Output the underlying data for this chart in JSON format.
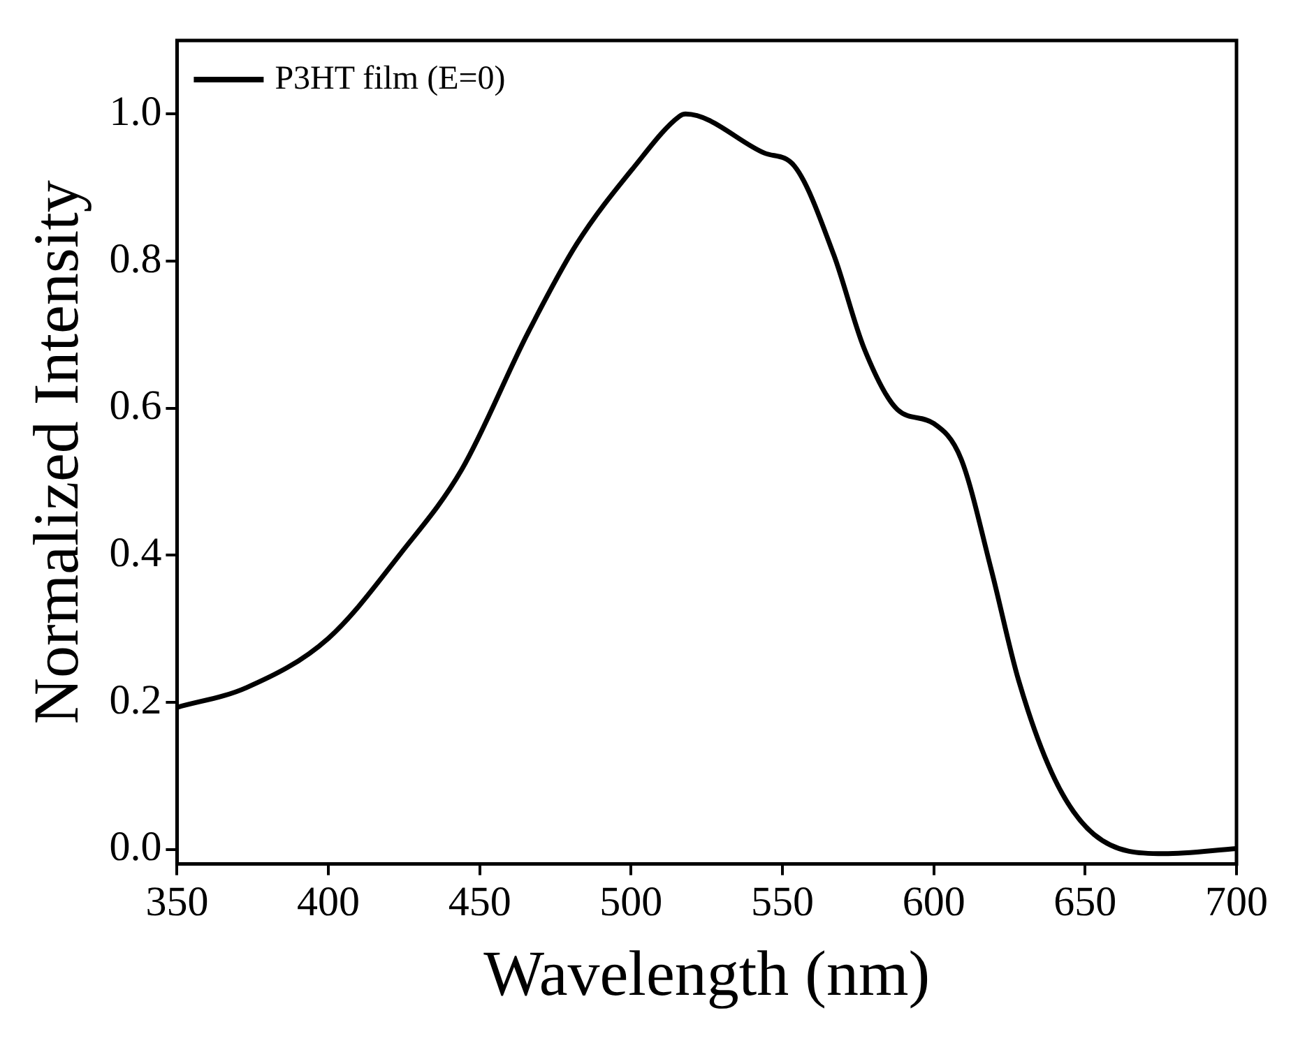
{
  "chart_data": {
    "type": "line",
    "xlabel": "Wavelength (nm)",
    "ylabel": "Normalized Intensity",
    "x": [
      350,
      373,
      400,
      424,
      444,
      466,
      482,
      501,
      516,
      518,
      544,
      554,
      567,
      577,
      588,
      600,
      609,
      619,
      628,
      640,
      653,
      676,
      700
    ],
    "series": [
      {
        "name": "P3HT film (E=0)",
        "color": "#000000",
        "values": [
          0.193,
          0.22,
          0.287,
          0.403,
          0.516,
          0.703,
          0.823,
          0.928,
          0.997,
          1.0,
          0.947,
          0.929,
          0.808,
          0.681,
          0.598,
          0.579,
          0.531,
          0.38,
          0.23,
          0.095,
          0.02,
          -0.006,
          0.001
        ]
      }
    ],
    "xlim": [
      350,
      700
    ],
    "xticks": [
      350,
      400,
      450,
      500,
      550,
      600,
      650,
      700
    ],
    "ylim": [
      -0.02,
      1.1
    ],
    "yticks": [
      {
        "value": 0,
        "label": "0.0"
      },
      {
        "value": 0.2,
        "label": "0.2"
      },
      {
        "value": 0.4,
        "label": "0.4"
      },
      {
        "value": 0.6,
        "label": "0.6"
      },
      {
        "value": 0.8,
        "label": "0.8"
      },
      {
        "value": 1,
        "label": "1.0"
      }
    ],
    "grid": false,
    "legend": "top left",
    "marker": "none",
    "line_style": "solid"
  }
}
